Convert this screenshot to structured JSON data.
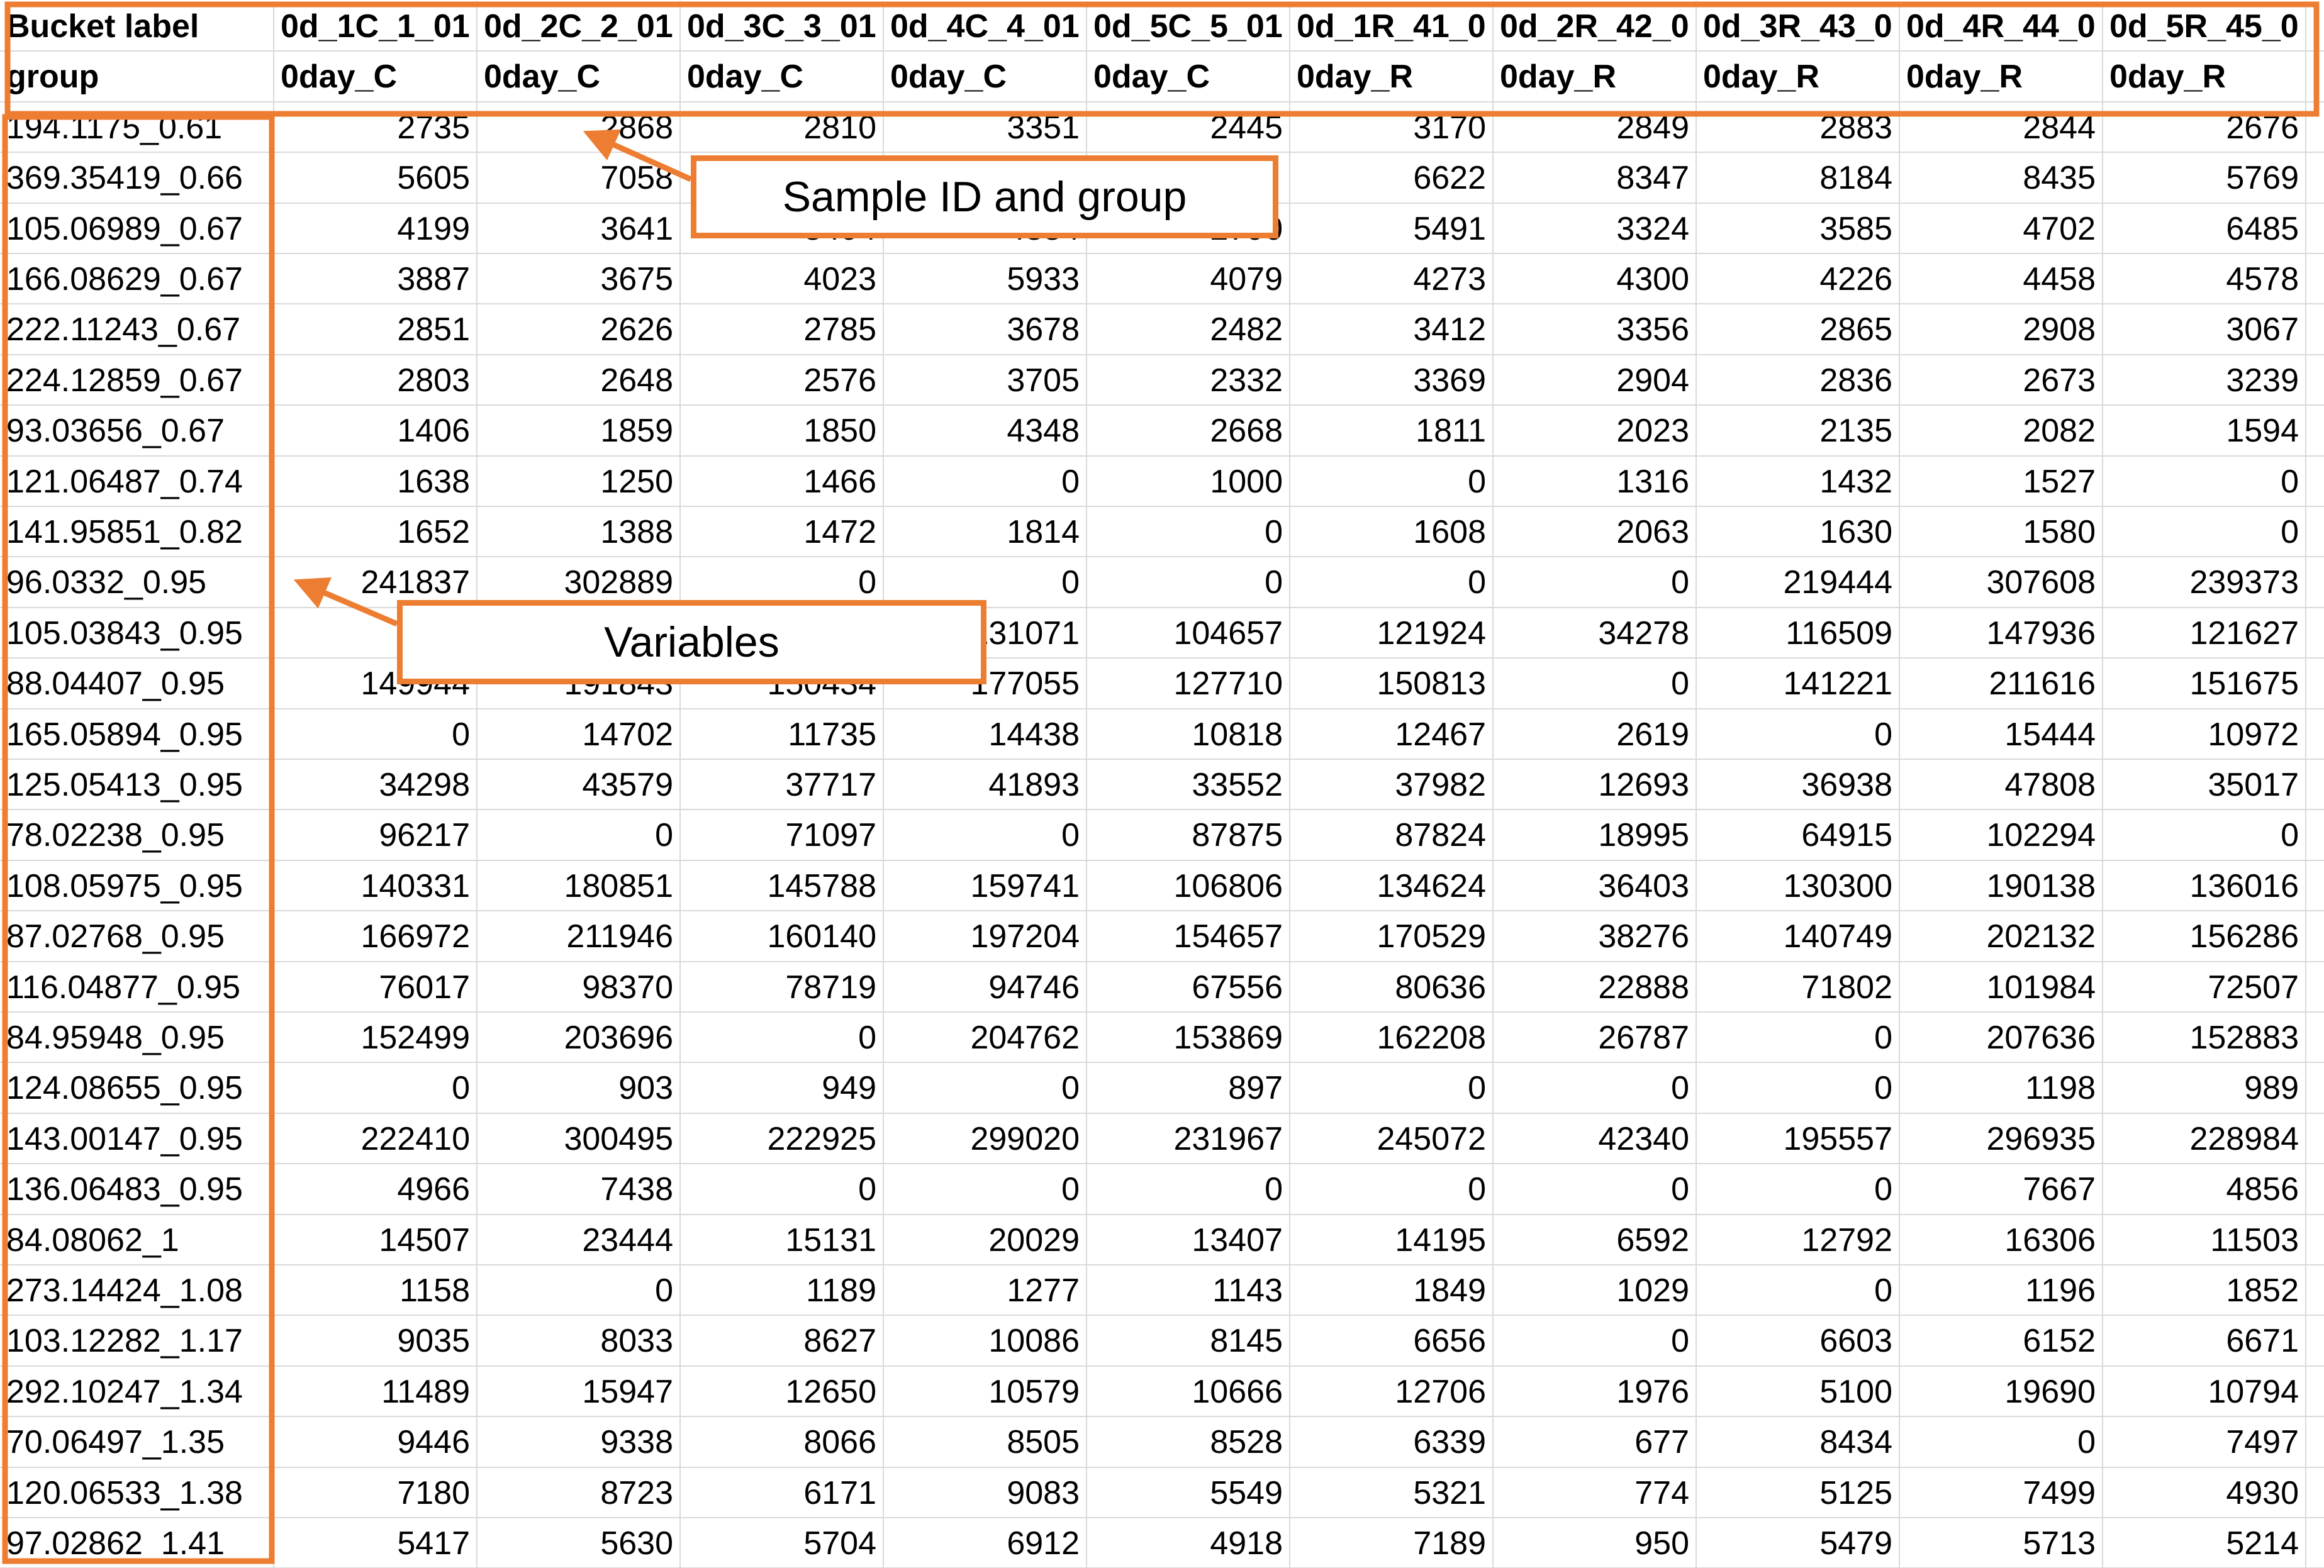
{
  "table": {
    "header_rows": [
      [
        "Bucket label",
        "0d_1C_1_01",
        "0d_2C_2_01",
        "0d_3C_3_01",
        "0d_4C_4_01",
        "0d_5C_5_01",
        "0d_1R_41_0",
        "0d_2R_42_0",
        "0d_3R_43_0",
        "0d_4R_44_0",
        "0d_5R_45_0"
      ],
      [
        "group",
        "0day_C",
        "0day_C",
        "0day_C",
        "0day_C",
        "0day_C",
        "0day_R",
        "0day_R",
        "0day_R",
        "0day_R",
        "0day_R"
      ]
    ],
    "rows": [
      {
        "label": "194.1175_0.61",
        "values": [
          2735,
          2868,
          2810,
          3351,
          2445,
          3170,
          2849,
          2883,
          2844,
          2676
        ]
      },
      {
        "label": "369.35419_0.66",
        "values": [
          5605,
          7058,
          null,
          null,
          null,
          6622,
          8347,
          8184,
          8435,
          5769
        ]
      },
      {
        "label": "105.06989_0.67",
        "values": [
          4199,
          3641,
          3404,
          4334,
          2790,
          5491,
          3324,
          3585,
          4702,
          6485
        ]
      },
      {
        "label": "166.08629_0.67",
        "values": [
          3887,
          3675,
          4023,
          5933,
          4079,
          4273,
          4300,
          4226,
          4458,
          4578
        ]
      },
      {
        "label": "222.11243_0.67",
        "values": [
          2851,
          2626,
          2785,
          3678,
          2482,
          3412,
          3356,
          2865,
          2908,
          3067
        ]
      },
      {
        "label": "224.12859_0.67",
        "values": [
          2803,
          2648,
          2576,
          3705,
          2332,
          3369,
          2904,
          2836,
          2673,
          3239
        ]
      },
      {
        "label": "93.03656_0.67",
        "values": [
          1406,
          1859,
          1850,
          4348,
          2668,
          1811,
          2023,
          2135,
          2082,
          1594
        ]
      },
      {
        "label": "121.06487_0.74",
        "values": [
          1638,
          1250,
          1466,
          0,
          1000,
          0,
          1316,
          1432,
          1527,
          0
        ]
      },
      {
        "label": "141.95851_0.82",
        "values": [
          1652,
          1388,
          1472,
          1814,
          0,
          1608,
          2063,
          1630,
          1580,
          0
        ]
      },
      {
        "label": "96.0332_0.95",
        "values": [
          241837,
          302889,
          0,
          0,
          0,
          0,
          0,
          219444,
          307608,
          239373
        ]
      },
      {
        "label": "105.03843_0.95",
        "values": [
          null,
          null,
          null,
          131071,
          104657,
          121924,
          34278,
          116509,
          147936,
          121627
        ]
      },
      {
        "label": "88.04407_0.95",
        "values": [
          149944,
          191843,
          150434,
          177055,
          127710,
          150813,
          0,
          141221,
          211616,
          151675
        ]
      },
      {
        "label": "165.05894_0.95",
        "values": [
          0,
          14702,
          11735,
          14438,
          10818,
          12467,
          2619,
          0,
          15444,
          10972
        ]
      },
      {
        "label": "125.05413_0.95",
        "values": [
          34298,
          43579,
          37717,
          41893,
          33552,
          37982,
          12693,
          36938,
          47808,
          35017
        ]
      },
      {
        "label": "78.02238_0.95",
        "values": [
          96217,
          0,
          71097,
          0,
          87875,
          87824,
          18995,
          64915,
          102294,
          0
        ]
      },
      {
        "label": "108.05975_0.95",
        "values": [
          140331,
          180851,
          145788,
          159741,
          106806,
          134624,
          36403,
          130300,
          190138,
          136016
        ]
      },
      {
        "label": "87.02768_0.95",
        "values": [
          166972,
          211946,
          160140,
          197204,
          154657,
          170529,
          38276,
          140749,
          202132,
          156286
        ]
      },
      {
        "label": "116.04877_0.95",
        "values": [
          76017,
          98370,
          78719,
          94746,
          67556,
          80636,
          22888,
          71802,
          101984,
          72507
        ]
      },
      {
        "label": "84.95948_0.95",
        "values": [
          152499,
          203696,
          0,
          204762,
          153869,
          162208,
          26787,
          0,
          207636,
          152883
        ]
      },
      {
        "label": "124.08655_0.95",
        "values": [
          0,
          903,
          949,
          0,
          897,
          0,
          0,
          0,
          1198,
          989
        ]
      },
      {
        "label": "143.00147_0.95",
        "values": [
          222410,
          300495,
          222925,
          299020,
          231967,
          245072,
          42340,
          195557,
          296935,
          228984
        ]
      },
      {
        "label": "136.06483_0.95",
        "values": [
          4966,
          7438,
          0,
          0,
          0,
          0,
          0,
          0,
          7667,
          4856
        ]
      },
      {
        "label": "84.08062_1",
        "values": [
          14507,
          23444,
          15131,
          20029,
          13407,
          14195,
          6592,
          12792,
          16306,
          11503
        ]
      },
      {
        "label": "273.14424_1.08",
        "values": [
          1158,
          0,
          1189,
          1277,
          1143,
          1849,
          1029,
          0,
          1196,
          1852
        ]
      },
      {
        "label": "103.12282_1.17",
        "values": [
          9035,
          8033,
          8627,
          10086,
          8145,
          6656,
          0,
          6603,
          6152,
          6671
        ]
      },
      {
        "label": "292.10247_1.34",
        "values": [
          11489,
          15947,
          12650,
          10579,
          10666,
          12706,
          1976,
          5100,
          19690,
          10794
        ]
      },
      {
        "label": "70.06497_1.35",
        "values": [
          9446,
          9338,
          8066,
          8505,
          8528,
          6339,
          677,
          8434,
          0,
          7497
        ]
      },
      {
        "label": "120.06533_1.38",
        "values": [
          7180,
          8723,
          6171,
          9083,
          5549,
          5321,
          774,
          5125,
          7499,
          4930
        ]
      },
      {
        "label": "97.02862_1.41",
        "values": [
          5417,
          5630,
          5704,
          6912,
          4918,
          7189,
          950,
          5479,
          5713,
          5214
        ]
      }
    ]
  },
  "callouts": {
    "header": "Sample ID and group",
    "variables": "Variables"
  }
}
